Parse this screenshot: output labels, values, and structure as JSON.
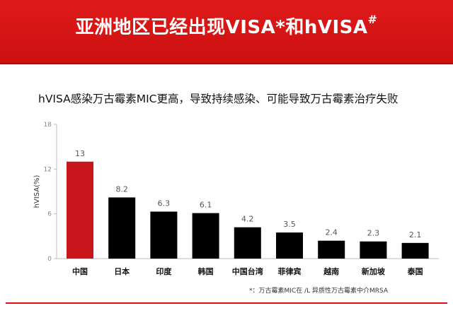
{
  "header": {
    "title": "亚洲地区已经出现VISA*和hVISA",
    "title_mark": "#"
  },
  "subtitle": "hVISA感染万古霉素MIC更高，导致持续感染、可能导致万古霉素治疗失败",
  "footnote": "*：万古霉素MIC在        /L                     异质性万古霉素中介MRSA",
  "colors": {
    "header_red": "#d81414",
    "highlight_bar": "#c8161c",
    "bar": "#000000"
  },
  "chart_data": {
    "type": "bar",
    "categories": [
      "中国",
      "日本",
      "印度",
      "韩国",
      "中国台湾",
      "菲律宾",
      "越南",
      "新加坡",
      "泰国"
    ],
    "values": [
      13,
      8.2,
      6.3,
      6.1,
      4.2,
      3.5,
      2.4,
      2.3,
      2.1
    ],
    "value_labels": [
      "13",
      "8.2",
      "6.3",
      "6.1",
      "4.2",
      "3.5",
      "2.4",
      "2.3",
      "2.1"
    ],
    "ylabel": "hVISA(%)",
    "ylim": [
      0,
      18
    ],
    "yticks": [
      "0",
      "6",
      "12",
      "18"
    ],
    "highlight_index": 0,
    "grid": false
  }
}
